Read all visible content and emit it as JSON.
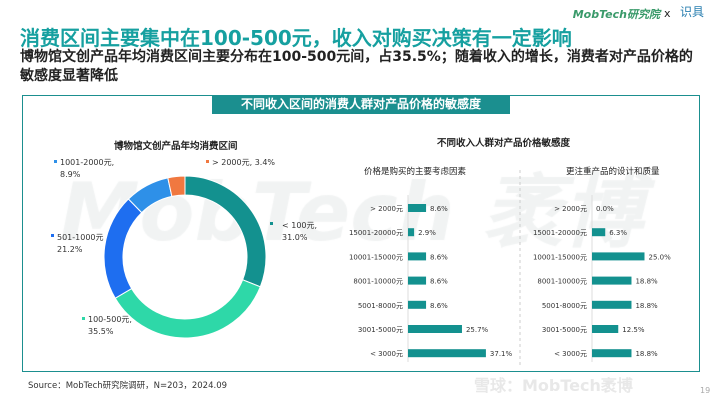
{
  "header": {
    "title": "消费区间主要集中在100-500元，收入对购买决策有一定影响",
    "subtitle": "博物馆文创产品年均消费区间主要分布在100-500元间，占35.5%；随着收入的增长，消费者对产品价格的敏感度显著降低",
    "logo": "MobTech研究院",
    "x": "x",
    "partner_logo": "识具"
  },
  "section_title": "不同收入区间的消费人群对产品价格的敏感度",
  "watermark": "MobTech 袤博",
  "chart_data": [
    {
      "type": "pie",
      "variant": "donut",
      "title": "博物馆文创产品年均消费区间",
      "categories": [
        "< 100元",
        "100-500元",
        "501-1000元",
        "1001-2000元",
        "> 2000元"
      ],
      "values": [
        31.0,
        35.5,
        21.2,
        8.9,
        3.4
      ],
      "labels": [
        "< 100元, 31.0%",
        "100-500元, 35.5%",
        "501-1000元 21.2%",
        "1001-2000元, 8.9%",
        "> 2000元, 3.4%"
      ],
      "colors": [
        "#13918f",
        "#2ed8a8",
        "#1e6ef0",
        "#2e90e8",
        "#f07840"
      ]
    },
    {
      "type": "bar",
      "orientation": "horizontal",
      "title": "不同收入人群对产品价格敏感度",
      "subtitle": "价格是购买的主要考虑因素",
      "categories": [
        "> 2000元",
        "15001-20000元",
        "10001-15000元",
        "8001-10000元",
        "5001-8000元",
        "3001-5000元",
        "< 3000元"
      ],
      "values": [
        8.6,
        2.9,
        8.6,
        8.6,
        8.6,
        25.7,
        37.1
      ],
      "unit": "%",
      "color": "#13918f"
    },
    {
      "type": "bar",
      "orientation": "horizontal",
      "subtitle": "更注重产品的设计和质量",
      "categories": [
        "> 2000元",
        "15001-20000元",
        "10001-15000元",
        "8001-10000元",
        "5001-8000元",
        "3001-5000元",
        "< 3000元"
      ],
      "values": [
        0.0,
        6.3,
        25.0,
        18.8,
        18.8,
        12.5,
        18.8
      ],
      "unit": "%",
      "color": "#13918f"
    }
  ],
  "footer": {
    "source": "Source：MobTech研究院调研，N=203，2024.09",
    "xueqiu": "雪球：MobTech袤博",
    "page": "19"
  }
}
